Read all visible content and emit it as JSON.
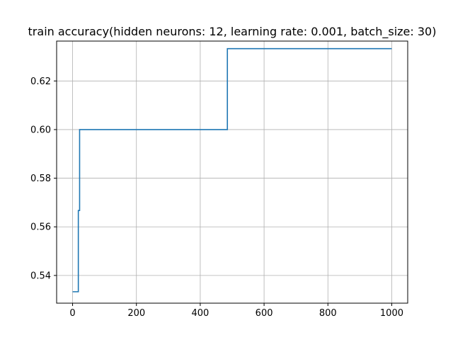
{
  "chart_data": {
    "type": "line",
    "title": "train accuracy(hidden neurons: 12, learning rate: 0.001, batch_size: 30)",
    "xlabel": "",
    "ylabel": "",
    "xlim": [
      -50,
      1050
    ],
    "ylim": [
      0.5286,
      0.6364
    ],
    "grid": true,
    "x_ticks": [
      0,
      200,
      400,
      600,
      800,
      1000
    ],
    "y_ticks": [
      0.54,
      0.56,
      0.58,
      0.6,
      0.62
    ],
    "x_tick_labels": [
      "0",
      "200",
      "400",
      "600",
      "800",
      "1000"
    ],
    "y_tick_labels": [
      "0.54",
      "0.56",
      "0.58",
      "0.60",
      "0.62"
    ],
    "series": [
      {
        "color": "#1f77b4",
        "x": [
          0,
          18,
          18,
          20,
          20,
          22,
          22,
          485,
          485,
          1000
        ],
        "y": [
          0.5333,
          0.5333,
          0.5667,
          0.5667,
          0.5667,
          0.5667,
          0.6,
          0.6,
          0.6333,
          0.6333
        ]
      }
    ]
  }
}
